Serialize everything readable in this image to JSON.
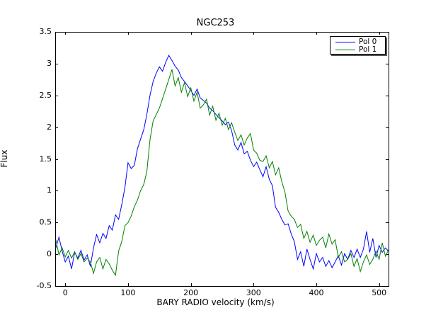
{
  "figure": {
    "background": "#ffffff",
    "frame_color": "#000000"
  },
  "chart_data": {
    "type": "line",
    "title": "NGC253",
    "xlabel": "BARY RADIO velocity (km/s)",
    "ylabel": "Flux",
    "xlim": [
      -16,
      515
    ],
    "ylim": [
      -0.5,
      3.5
    ],
    "grid": false,
    "xticks": {
      "values": [
        0,
        100,
        200,
        300,
        400,
        500
      ],
      "labels": [
        "0",
        "100",
        "200",
        "300",
        "400",
        "500"
      ]
    },
    "yticks": {
      "values": [
        -0.5,
        0,
        0.5,
        1,
        1.5,
        2,
        2.5,
        3,
        3.5
      ],
      "labels": [
        "-0.5",
        "0",
        "0.5",
        "1",
        "1.5",
        "2",
        "2.5",
        "3",
        "3.5"
      ]
    },
    "legend": {
      "position": "upper right",
      "shadow": true
    },
    "x_start": -15,
    "x_step": 5,
    "series": [
      {
        "name": "Pol 0",
        "color": "#0000ff",
        "values": [
          0.1,
          0.27,
          0.05,
          -0.12,
          -0.03,
          -0.23,
          0.03,
          -0.06,
          0.06,
          -0.09,
          -0.01,
          -0.19,
          0.1,
          0.31,
          0.18,
          0.33,
          0.25,
          0.45,
          0.38,
          0.62,
          0.55,
          0.78,
          1.05,
          1.44,
          1.35,
          1.4,
          1.66,
          1.81,
          1.96,
          2.2,
          2.5,
          2.72,
          2.85,
          2.95,
          2.88,
          3.02,
          3.13,
          3.05,
          2.96,
          2.9,
          2.78,
          2.72,
          2.65,
          2.58,
          2.5,
          2.6,
          2.46,
          2.42,
          2.38,
          2.3,
          2.26,
          2.2,
          2.15,
          2.1,
          2.04,
          2.08,
          1.95,
          1.72,
          1.64,
          1.76,
          1.58,
          1.62,
          1.48,
          1.38,
          1.45,
          1.33,
          1.22,
          1.38,
          1.18,
          1.08,
          0.74,
          0.66,
          0.55,
          0.46,
          0.48,
          0.32,
          0.2,
          -0.08,
          0.04,
          -0.19,
          0.08,
          -0.08,
          -0.23,
          0.01,
          -0.12,
          -0.05,
          -0.19,
          -0.1,
          -0.21,
          -0.12,
          -0.02,
          -0.17,
          0.01,
          -0.08,
          0.06,
          -0.05,
          0.08,
          -0.05,
          0.08,
          0.36,
          0.03,
          0.25,
          -0.05,
          0.14,
          0.03,
          0.1,
          0.05
        ]
      },
      {
        "name": "Pol 1",
        "color": "#008000",
        "values": [
          0.23,
          -0.01,
          0.1,
          -0.04,
          0.06,
          -0.06,
          0.04,
          -0.08,
          0.01,
          -0.12,
          -0.06,
          -0.12,
          -0.3,
          -0.12,
          -0.05,
          -0.23,
          -0.08,
          -0.15,
          -0.25,
          -0.33,
          0.05,
          0.2,
          0.45,
          0.5,
          0.6,
          0.75,
          0.85,
          1.0,
          1.1,
          1.3,
          1.8,
          2.1,
          2.2,
          2.3,
          2.45,
          2.6,
          2.75,
          2.91,
          2.65,
          2.78,
          2.55,
          2.7,
          2.48,
          2.62,
          2.41,
          2.55,
          2.3,
          2.35,
          2.44,
          2.19,
          2.33,
          2.11,
          2.22,
          2.03,
          2.14,
          1.96,
          2.07,
          1.92,
          1.79,
          1.88,
          1.72,
          1.83,
          1.9,
          1.64,
          1.59,
          1.48,
          1.46,
          1.55,
          1.36,
          1.46,
          1.25,
          1.36,
          1.14,
          0.98,
          0.68,
          0.6,
          0.55,
          0.42,
          0.47,
          0.25,
          0.36,
          0.19,
          0.3,
          0.14,
          0.22,
          0.27,
          0.1,
          0.32,
          0.16,
          0.23,
          -0.05,
          0.04,
          -0.12,
          -0.08,
          0.01,
          -0.19,
          -0.07,
          -0.27,
          -0.12,
          -0.01,
          -0.16,
          -0.08,
          0.05,
          -0.08,
          0.18,
          -0.03,
          0.07
        ]
      }
    ]
  }
}
